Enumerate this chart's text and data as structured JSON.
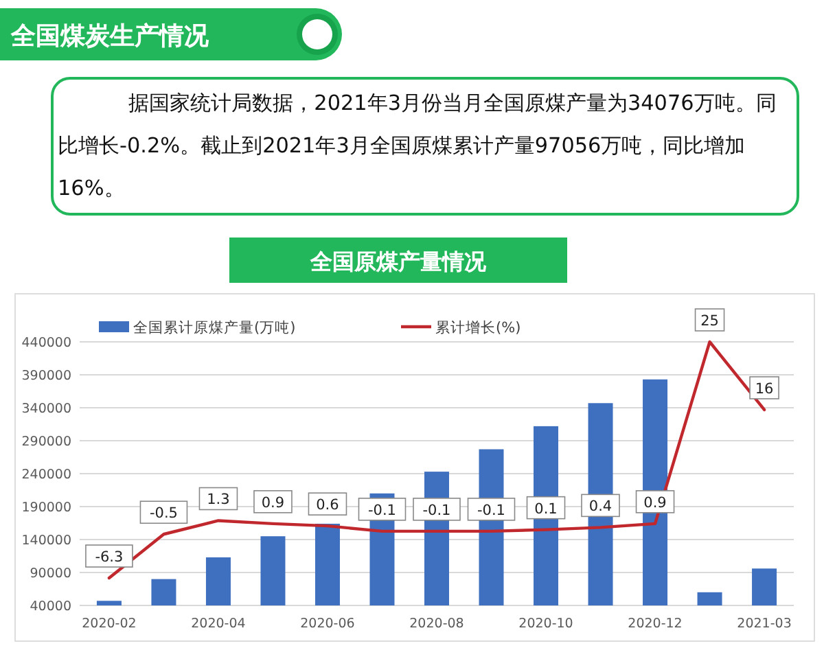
{
  "chart_data": {
    "type": "bar",
    "title": "全国煤炭生产情况",
    "subtitle": "全国原煤产量情况",
    "annotations": [
      "据国家统计局数据，2021年3月份当月全国原煤产量为34076万吨。同比增长-0.2%。截止到2021年3月全国原煤累计产量97056万吨，同比增加16%。"
    ],
    "categories": [
      "2020-02",
      null,
      "2020-04",
      null,
      "2020-06",
      null,
      "2020-08",
      null,
      "2020-10",
      null,
      "2020-12",
      null,
      "2021-03"
    ],
    "series": [
      {
        "name": "全国累计原煤产量(万吨)",
        "color": "#3f6fbf",
        "values": [
          47000,
          80000,
          113000,
          145000,
          164000,
          210000,
          243000,
          277000,
          312000,
          347000,
          383000,
          60000,
          96000
        ]
      },
      {
        "name": "累计增长(%)",
        "type": "line",
        "axis": "y2",
        "color": "#c0282d",
        "values": [
          -6.3,
          -0.5,
          1.3,
          0.9,
          0.6,
          -0.1,
          -0.1,
          -0.1,
          0.1,
          0.4,
          0.9,
          25,
          16
        ],
        "value_labels": [
          "-6.3",
          "-0.5",
          "1.3",
          "0.9",
          "0.6",
          "-0.1",
          "-0.1",
          "-0.1",
          "0.1",
          "0.4",
          "0.9",
          "25",
          "16"
        ]
      }
    ],
    "ylim": [
      40000,
      440000
    ],
    "yticks": [
      40000,
      90000,
      140000,
      190000,
      240000,
      290000,
      340000,
      390000,
      440000
    ],
    "grid": "y",
    "legend": "top",
    "marker": "none",
    "line_style": "solid"
  }
}
